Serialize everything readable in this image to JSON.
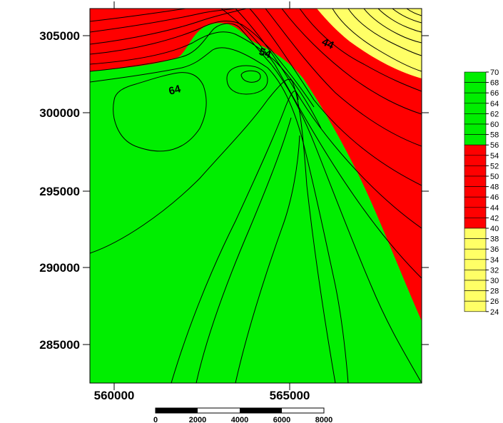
{
  "map": {
    "colors": {
      "high": "#00ee00",
      "mid": "#ff0000",
      "low": "#ffff66",
      "line": "#000000"
    },
    "y_ticks": [
      "305000",
      "300000",
      "295000",
      "290000",
      "285000"
    ],
    "x_ticks": [
      "560000",
      "565000"
    ],
    "contour_labels": [
      "64",
      "54",
      "44"
    ]
  },
  "legend": {
    "levels": [
      "70",
      "68",
      "66",
      "64",
      "62",
      "60",
      "58",
      "56",
      "54",
      "52",
      "50",
      "48",
      "46",
      "44",
      "42",
      "40",
      "38",
      "36",
      "34",
      "32",
      "30",
      "28",
      "26",
      "24"
    ],
    "bands": [
      {
        "from": 56,
        "to": 70,
        "color": "#00ee00"
      },
      {
        "from": 40,
        "to": 56,
        "color": "#ff0000"
      },
      {
        "from": 24,
        "to": 40,
        "color": "#ffff66"
      }
    ]
  },
  "scale_bar": {
    "labels": [
      "0",
      "2000",
      "4000",
      "6000",
      "8000"
    ]
  }
}
